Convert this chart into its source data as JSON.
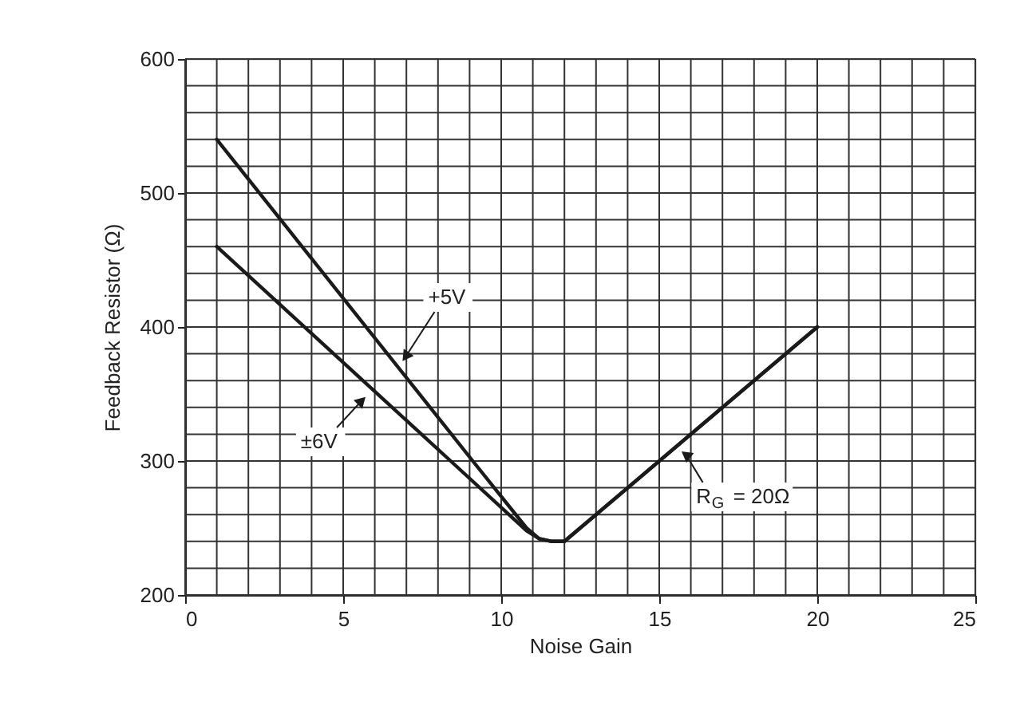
{
  "chart_data": {
    "type": "line",
    "xlabel": "Noise Gain",
    "ylabel": "Feedback Resistor (Ω)",
    "series": [
      {
        "color": "#1a1a1a",
        "x": [
          1,
          9.1,
          10.8,
          11.2,
          11.6,
          12,
          20
        ],
        "values": [
          540,
          300,
          250,
          242,
          240,
          240,
          400
        ]
      },
      {
        "color": "#1a1a1a",
        "x": [
          1,
          8.4,
          10.8,
          11.2,
          11.6,
          12,
          20
        ],
        "values": [
          460,
          300,
          248,
          242,
          240,
          240,
          400
        ]
      }
    ],
    "xlim": [
      0,
      25
    ],
    "xticks": [
      0,
      {
        "value": 1,
        "label": null
      },
      {
        "value": 2,
        "label": null
      },
      {
        "value": 3,
        "label": null
      },
      {
        "value": 4,
        "label": null
      },
      5,
      {
        "value": 6,
        "label": null
      },
      {
        "value": 7,
        "label": null
      },
      {
        "value": 8,
        "label": null
      },
      {
        "value": 9,
        "label": null
      },
      10,
      {
        "value": 11,
        "label": null
      },
      {
        "value": 12,
        "label": null
      },
      {
        "value": 13,
        "label": null
      },
      {
        "value": 14,
        "label": null
      },
      15,
      {
        "value": 16,
        "label": null
      },
      {
        "value": 17,
        "label": null
      },
      {
        "value": 18,
        "label": null
      },
      {
        "value": 19,
        "label": null
      },
      20,
      {
        "value": 21,
        "label": null
      },
      {
        "value": 22,
        "label": null
      },
      {
        "value": 23,
        "label": null
      },
      {
        "value": 24,
        "label": null
      },
      25
    ],
    "ylim": [
      200,
      600
    ],
    "yticks": [
      200,
      {
        "value": 220,
        "label": null
      },
      {
        "value": 240,
        "label": null
      },
      {
        "value": 260,
        "label": null
      },
      {
        "value": 280,
        "label": null
      },
      300,
      {
        "value": 320,
        "label": null
      },
      {
        "value": 340,
        "label": null
      },
      {
        "value": 360,
        "label": null
      },
      {
        "value": 380,
        "label": null
      },
      400,
      {
        "value": 420,
        "label": null
      },
      {
        "value": 440,
        "label": null
      },
      {
        "value": 460,
        "label": null
      },
      {
        "value": 480,
        "label": null
      },
      500,
      {
        "value": 520,
        "label": null
      },
      {
        "value": 540,
        "label": null
      },
      {
        "value": 560,
        "label": null
      },
      {
        "value": 580,
        "label": null
      },
      600
    ],
    "grid": true,
    "marker": "none",
    "line_style": "solid",
    "annotations": [
      {
        "text": "+5V",
        "x": 6.8,
        "y": 372
      },
      {
        "text": "±6V",
        "x": 5.8,
        "y": 350
      },
      {
        "text": "R$_{G}$ = 20Ω",
        "x": 15.6,
        "y": 309
      }
    ]
  }
}
